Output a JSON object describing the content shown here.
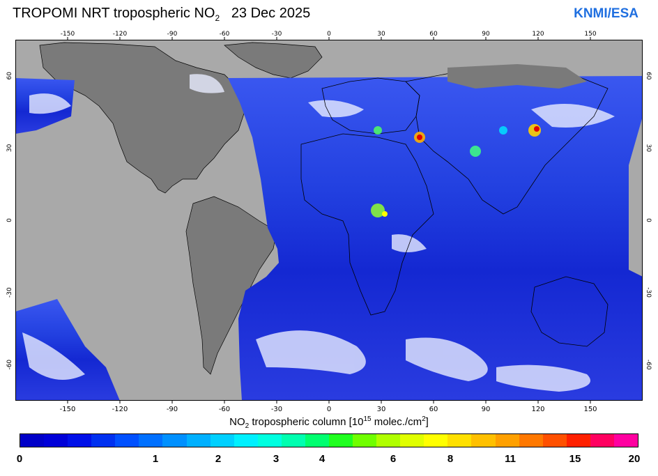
{
  "header": {
    "title_main": "TROPOMI  NRT tropospheric NO",
    "title_sub": "2",
    "title_date": "23 Dec 2025",
    "brand": "KNMI/ESA"
  },
  "map": {
    "lon_ticks": [
      "-150",
      "-120",
      "-90",
      "-60",
      "-30",
      "0",
      "30",
      "60",
      "90",
      "120",
      "150"
    ],
    "lat_ticks": [
      "60",
      "30",
      "0",
      "-30",
      "-60"
    ],
    "colors": {
      "ocean_nodata": "#a9a9a9",
      "land_nodata": "#7a7a7a",
      "border": "#000000",
      "low_no2": "#0a14d6",
      "high_no2": "#e00000"
    }
  },
  "colorbar": {
    "label_main": "NO",
    "label_sub": "2",
    "label_rest": " tropospheric column [10",
    "label_sup1": "15",
    "label_rest2": " molec./cm",
    "label_sup2": "2",
    "label_end": "]",
    "ticks": [
      "0",
      "1",
      "2",
      "3",
      "4",
      "6",
      "8",
      "11",
      "15",
      "20"
    ],
    "colors": [
      "#0000c8",
      "#0000d8",
      "#0010e8",
      "#0030f0",
      "#0050ff",
      "#0070ff",
      "#0090ff",
      "#00b0ff",
      "#00d0ff",
      "#00f0ff",
      "#00ffe0",
      "#00ffb0",
      "#00ff70",
      "#20ff20",
      "#70ff00",
      "#b0ff00",
      "#e0ff00",
      "#ffff00",
      "#ffe000",
      "#ffc000",
      "#ffa000",
      "#ff7800",
      "#ff5000",
      "#ff2000",
      "#ff0060",
      "#ff00a0"
    ]
  }
}
